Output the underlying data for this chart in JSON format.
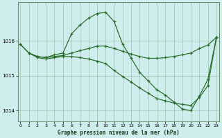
{
  "xlabel": "Graphe pression niveau de la mer (hPa)",
  "bg_color": "#ceeeed",
  "plot_bg_color": "#ceeeed",
  "grid_color": "#aaccbb",
  "line_color": "#2d6e2d",
  "ylim": [
    1013.7,
    1017.1
  ],
  "yticks": [
    1014,
    1015,
    1016
  ],
  "xlim": [
    -0.3,
    23.3
  ],
  "xticks": [
    0,
    1,
    2,
    3,
    4,
    5,
    6,
    7,
    8,
    9,
    10,
    11,
    12,
    13,
    14,
    15,
    16,
    17,
    18,
    19,
    20,
    21,
    22,
    23
  ],
  "line1_x": [
    0,
    1,
    2,
    3,
    4,
    5,
    6,
    7,
    8,
    9,
    10,
    11,
    12,
    13,
    14,
    15,
    16,
    17,
    18,
    19,
    20,
    21,
    22,
    23
  ],
  "line1_y": [
    1015.9,
    1015.65,
    1015.55,
    1015.52,
    1015.55,
    1015.58,
    1015.65,
    1015.72,
    1015.78,
    1015.85,
    1015.85,
    1015.78,
    1015.7,
    1015.62,
    1015.55,
    1015.5,
    1015.5,
    1015.52,
    1015.55,
    1015.6,
    1015.65,
    1015.78,
    1015.88,
    1016.1
  ],
  "line2_x": [
    0,
    1,
    2,
    3,
    4,
    5,
    6,
    7,
    8,
    9,
    10,
    11,
    12,
    13,
    14,
    15,
    16,
    17,
    18,
    19,
    20,
    21,
    22,
    23
  ],
  "line2_y": [
    1015.9,
    1015.65,
    1015.55,
    1015.52,
    1015.6,
    1015.65,
    1016.2,
    1016.45,
    1016.65,
    1016.78,
    1016.82,
    1016.55,
    1015.9,
    1015.5,
    1015.1,
    1014.85,
    1014.6,
    1014.45,
    1014.25,
    1014.05,
    1014.0,
    1014.42,
    1014.9,
    1016.1
  ],
  "line3_x": [
    1,
    2,
    3,
    4,
    5,
    6,
    7,
    8,
    9,
    10,
    11,
    12,
    13,
    14,
    15,
    16,
    17,
    18,
    19,
    20,
    21,
    22,
    23
  ],
  "line3_y": [
    1015.65,
    1015.52,
    1015.48,
    1015.52,
    1015.55,
    1015.55,
    1015.52,
    1015.48,
    1015.42,
    1015.35,
    1015.15,
    1014.98,
    1014.82,
    1014.65,
    1014.5,
    1014.35,
    1014.28,
    1014.22,
    1014.18,
    1014.15,
    1014.38,
    1014.72,
    1016.1
  ]
}
